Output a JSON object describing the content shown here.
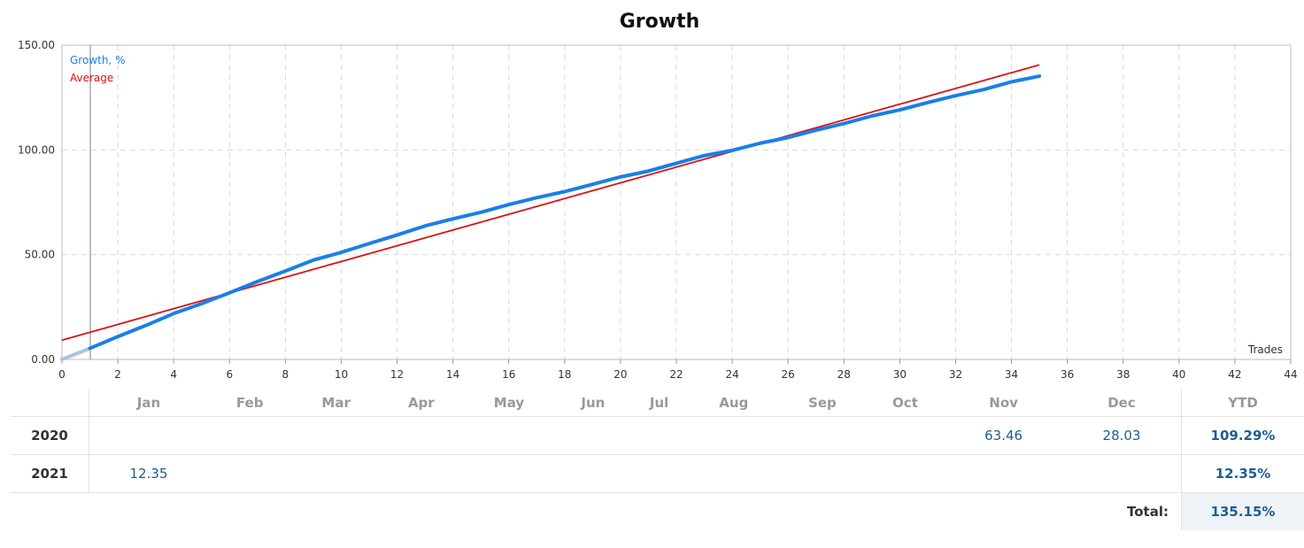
{
  "chart_data": {
    "type": "line",
    "title": "Growth",
    "xlabel": "Trades",
    "ylabel": "",
    "xlim": [
      0,
      44
    ],
    "ylim": [
      0,
      150
    ],
    "grid": true,
    "legend": "top-left",
    "x_ticks": [
      "0",
      "2",
      "4",
      "6",
      "8",
      "10",
      "12",
      "14",
      "16",
      "18",
      "20",
      "22",
      "24",
      "26",
      "28",
      "30",
      "32",
      "34",
      "36",
      "38",
      "40",
      "42",
      "44"
    ],
    "y_ticks": [
      "0.00",
      "50.00",
      "100.00",
      "150.00"
    ],
    "series": [
      {
        "name": "Growth, %",
        "color": "#1a7fe8",
        "x": [
          0,
          1,
          2,
          3,
          4,
          5,
          6,
          7,
          8,
          9,
          10,
          11,
          12,
          13,
          14,
          15,
          16,
          17,
          18,
          19,
          20,
          21,
          22,
          23,
          24,
          25,
          26,
          27,
          28,
          29,
          30,
          31,
          32,
          33,
          34,
          35
        ],
        "y": [
          0,
          5.3,
          10.9,
          16.2,
          21.9,
          26.6,
          31.8,
          37.2,
          42.2,
          47.4,
          51.1,
          55.3,
          59.4,
          63.7,
          67.1,
          70.2,
          73.9,
          77.2,
          80.1,
          83.6,
          87.1,
          89.9,
          93.6,
          97.3,
          99.8,
          103.2,
          105.9,
          109.4,
          112.6,
          116.2,
          119.1,
          122.6,
          125.9,
          128.8,
          132.5,
          135.2
        ]
      },
      {
        "name": "Average",
        "color": "#dd1111",
        "x": [
          0,
          35
        ],
        "y": [
          9.2,
          140.6
        ]
      }
    ]
  },
  "table": {
    "months": [
      "Jan",
      "Feb",
      "Mar",
      "Apr",
      "May",
      "Jun",
      "Jul",
      "Aug",
      "Sep",
      "Oct",
      "Nov",
      "Dec"
    ],
    "ytd_label": "YTD",
    "rows": [
      {
        "year": "2020",
        "values": [
          "",
          "",
          "",
          "",
          "",
          "",
          "",
          "",
          "",
          "",
          "63.46",
          "28.03"
        ],
        "ytd": "109.29%"
      },
      {
        "year": "2021",
        "values": [
          "12.35",
          "",
          "",
          "",
          "",
          "",
          "",
          "",
          "",
          "",
          "",
          ""
        ],
        "ytd": "12.35%"
      }
    ],
    "total_label": "Total:",
    "total_value": "135.15%"
  }
}
